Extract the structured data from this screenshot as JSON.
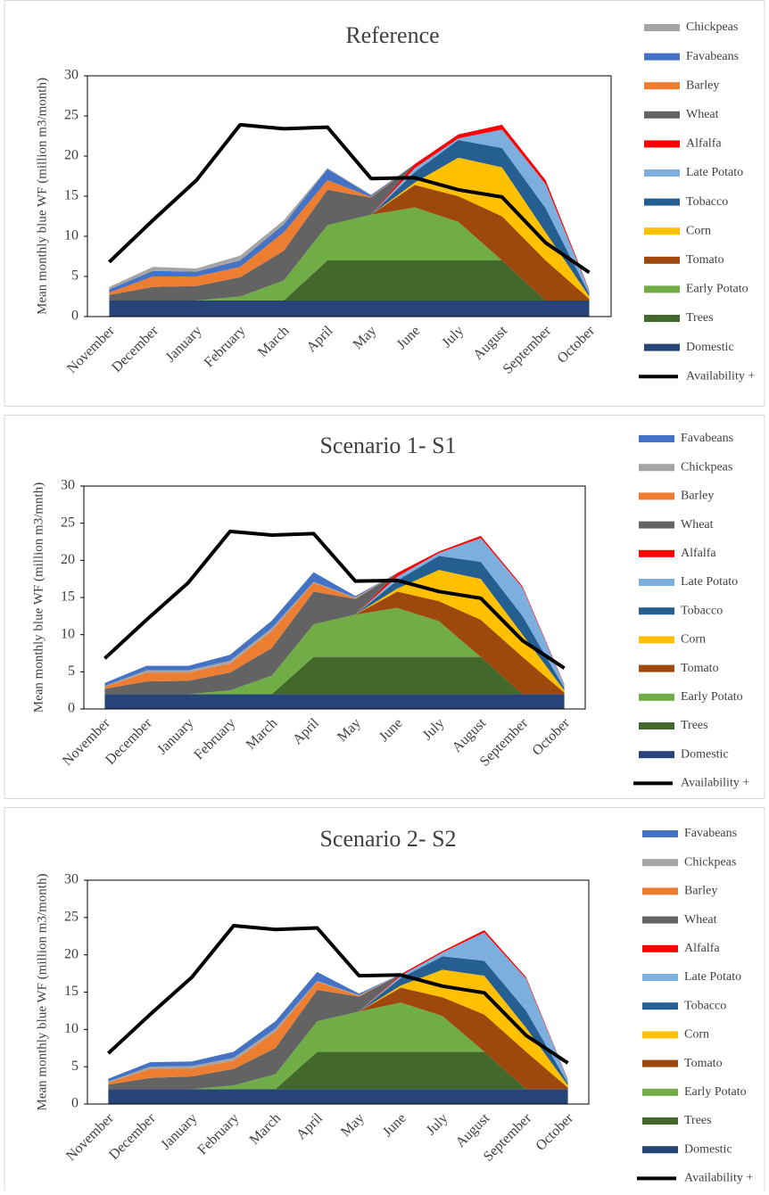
{
  "chart_data": [
    {
      "type": "stacked-area",
      "title": "Reference",
      "ylabel": "Mean monthly blue WF (million m3/month)",
      "categories": [
        "November",
        "December",
        "January",
        "February",
        "March",
        "April",
        "May",
        "June",
        "July",
        "August",
        "September",
        "October"
      ],
      "ylim": [
        0,
        30
      ],
      "yticks": [
        0,
        5,
        10,
        15,
        20,
        25,
        30
      ],
      "series": [
        {
          "name": "Chickpeas",
          "color": "#a5a5a5",
          "values": [
            0.3,
            0.5,
            0.4,
            0.6,
            0.5,
            0.1,
            0.1,
            0,
            0,
            0,
            0,
            0
          ]
        },
        {
          "name": "Favabeans",
          "color": "#4472c4",
          "values": [
            0.4,
            0.7,
            0.6,
            0.8,
            1.0,
            1.4,
            0.2,
            0,
            0,
            0,
            0,
            0
          ]
        },
        {
          "name": "Barley",
          "color": "#ed7d31",
          "values": [
            0.3,
            1.3,
            1.2,
            1.3,
            2.3,
            1.2,
            0.1,
            0,
            0,
            0,
            0,
            0
          ]
        },
        {
          "name": "Wheat",
          "color": "#636363",
          "values": [
            0.7,
            1.7,
            1.8,
            2.4,
            3.7,
            4.4,
            2.1,
            0,
            0,
            0,
            0,
            0
          ]
        },
        {
          "name": "Alfalfa",
          "color": "#ff0000",
          "values": [
            0,
            0,
            0,
            0,
            0,
            0,
            0,
            0.5,
            0.5,
            0.6,
            0.5,
            0.1
          ]
        },
        {
          "name": "Late Potato",
          "color": "#7cafdd",
          "values": [
            0,
            0,
            0,
            0,
            0,
            0,
            0,
            0.5,
            0.2,
            2.3,
            3.0,
            0.4
          ]
        },
        {
          "name": "Tobacco",
          "color": "#255e91",
          "values": [
            0,
            0,
            0,
            0,
            0,
            0,
            0,
            1.3,
            2.2,
            2.4,
            3.0,
            0.3
          ]
        },
        {
          "name": "Corn",
          "color": "#ffc000",
          "values": [
            0,
            0,
            0,
            0,
            0,
            0,
            0,
            0.3,
            4.8,
            6.1,
            3.5,
            0.3
          ]
        },
        {
          "name": "Tomato",
          "color": "#9e480e",
          "values": [
            0,
            0,
            0,
            0,
            0,
            0,
            0,
            2.8,
            3.2,
            5.5,
            5.0,
            0.2
          ]
        },
        {
          "name": "Early Potato",
          "color": "#70ad47",
          "values": [
            0,
            0,
            0,
            0.5,
            2.5,
            4.4,
            5.7,
            6.6,
            4.8,
            0,
            0,
            0
          ]
        },
        {
          "name": "Trees",
          "color": "#43682b",
          "values": [
            0,
            0,
            0,
            0,
            0,
            5,
            5,
            5,
            5,
            5,
            0,
            0
          ]
        },
        {
          "name": "Domestic",
          "color": "#264478",
          "values": [
            2,
            2,
            2,
            2,
            2,
            2,
            2,
            2,
            2,
            2,
            2,
            2
          ]
        },
        {
          "name": "Availability +",
          "color": "#000000",
          "type": "line",
          "values": [
            6.8,
            12,
            17,
            23.9,
            23.4,
            23.6,
            17.2,
            17.3,
            15.8,
            14.9,
            9.2,
            5.5
          ]
        }
      ]
    },
    {
      "type": "stacked-area",
      "title": "Scenario 1- S1",
      "ylabel": "Mean monthly blue WF (million m3/mnth)",
      "categories": [
        "November",
        "December",
        "January",
        "February",
        "March",
        "April",
        "May",
        "June",
        "July",
        "August",
        "September",
        "October"
      ],
      "ylim": [
        0,
        30
      ],
      "yticks": [
        0,
        5,
        10,
        15,
        20,
        25,
        30
      ],
      "series": [
        {
          "name": "Favabeans",
          "color": "#4472c4",
          "values": [
            0.4,
            0.6,
            0.6,
            0.8,
            1.0,
            1.3,
            0.2,
            0,
            0,
            0,
            0,
            0
          ]
        },
        {
          "name": "Chickpeas",
          "color": "#a5a5a5",
          "values": [
            0.1,
            0.3,
            0.3,
            0.4,
            0.4,
            0.1,
            0.1,
            0,
            0,
            0,
            0,
            0
          ]
        },
        {
          "name": "Barley",
          "color": "#ed7d31",
          "values": [
            0.3,
            1.2,
            1.1,
            1.2,
            2.3,
            1.2,
            0.1,
            0,
            0,
            0,
            0,
            0
          ]
        },
        {
          "name": "Wheat",
          "color": "#636363",
          "values": [
            0.7,
            1.7,
            1.8,
            2.4,
            3.7,
            4.4,
            2.1,
            0,
            0,
            0,
            0,
            0
          ]
        },
        {
          "name": "Alfalfa",
          "color": "#ff0000",
          "values": [
            0,
            0,
            0,
            0,
            0,
            0,
            0,
            0.5,
            0.2,
            0.3,
            0.2,
            0.1
          ]
        },
        {
          "name": "Late Potato",
          "color": "#7cafdd",
          "values": [
            0,
            0,
            0,
            0,
            0,
            0,
            0,
            0.5,
            0.4,
            3.2,
            3.8,
            0.4
          ]
        },
        {
          "name": "Tobacco",
          "color": "#255e91",
          "values": [
            0,
            0,
            0,
            0,
            0,
            0,
            0,
            1.1,
            1.9,
            2.3,
            2.5,
            0.3
          ]
        },
        {
          "name": "Corn",
          "color": "#ffc000",
          "values": [
            0,
            0,
            0,
            0,
            0,
            0,
            0,
            0.4,
            4.2,
            5.5,
            3.0,
            0.3
          ]
        },
        {
          "name": "Tomato",
          "color": "#9e480e",
          "values": [
            0,
            0,
            0,
            0,
            0,
            0,
            0,
            2.2,
            2.7,
            5.0,
            5.0,
            0.2
          ]
        },
        {
          "name": "Early Potato",
          "color": "#70ad47",
          "values": [
            0,
            0,
            0,
            0.5,
            2.5,
            4.4,
            5.7,
            6.6,
            4.8,
            0,
            0,
            0
          ]
        },
        {
          "name": "Trees",
          "color": "#43682b",
          "values": [
            0,
            0,
            0,
            0,
            0,
            5,
            5,
            5,
            5,
            5,
            0,
            0
          ]
        },
        {
          "name": "Domestic",
          "color": "#264478",
          "values": [
            2,
            2,
            2,
            2,
            2,
            2,
            2,
            2,
            2,
            2,
            2,
            2
          ]
        },
        {
          "name": "Availability +",
          "color": "#000000",
          "type": "line",
          "values": [
            6.8,
            12,
            17,
            23.9,
            23.4,
            23.6,
            17.2,
            17.3,
            15.8,
            14.9,
            9.2,
            5.5
          ]
        }
      ]
    },
    {
      "type": "stacked-area",
      "title": "Scenario 2- S2",
      "ylabel": "Mean monthly blue WF (million m3/month)",
      "categories": [
        "November",
        "December",
        "January",
        "February",
        "March",
        "April",
        "May",
        "June",
        "July",
        "August",
        "September",
        "October"
      ],
      "ylim": [
        0,
        30
      ],
      "yticks": [
        0,
        5,
        10,
        15,
        20,
        25,
        30
      ],
      "series": [
        {
          "name": "Favabeans",
          "color": "#4472c4",
          "values": [
            0.4,
            0.6,
            0.6,
            0.8,
            1.0,
            1.2,
            0.2,
            0,
            0,
            0,
            0,
            0
          ]
        },
        {
          "name": "Chickpeas",
          "color": "#a5a5a5",
          "values": [
            0.1,
            0.3,
            0.3,
            0.4,
            0.4,
            0.1,
            0.1,
            0,
            0,
            0,
            0,
            0
          ]
        },
        {
          "name": "Barley",
          "color": "#ed7d31",
          "values": [
            0.3,
            1.2,
            1.1,
            1.1,
            2.2,
            1.1,
            0.1,
            0,
            0,
            0,
            0,
            0
          ]
        },
        {
          "name": "Wheat",
          "color": "#636363",
          "values": [
            0.6,
            1.5,
            1.7,
            2.2,
            3.5,
            4.2,
            2.0,
            0,
            0,
            0,
            0,
            0
          ]
        },
        {
          "name": "Alfalfa",
          "color": "#ff0000",
          "values": [
            0,
            0,
            0,
            0,
            0,
            0,
            0,
            0.2,
            0.2,
            0.3,
            0.2,
            0.1
          ]
        },
        {
          "name": "Late Potato",
          "color": "#7cafdd",
          "values": [
            0,
            0,
            0,
            0,
            0,
            0,
            0,
            0.3,
            0.5,
            3.8,
            4.3,
            0.4
          ]
        },
        {
          "name": "Tobacco",
          "color": "#255e91",
          "values": [
            0,
            0,
            0,
            0,
            0,
            0,
            0,
            1.0,
            1.8,
            2.0,
            2.3,
            0.3
          ]
        },
        {
          "name": "Corn",
          "color": "#ffc000",
          "values": [
            0,
            0,
            0,
            0,
            0,
            0,
            0,
            0.3,
            3.7,
            5.2,
            3.2,
            0.3
          ]
        },
        {
          "name": "Tomato",
          "color": "#9e480e",
          "values": [
            0,
            0,
            0,
            0,
            0,
            0,
            0,
            2.0,
            2.5,
            5.0,
            5.0,
            0.2
          ]
        },
        {
          "name": "Early Potato",
          "color": "#70ad47",
          "values": [
            0,
            0,
            0,
            0.5,
            2.0,
            4.1,
            5.4,
            6.6,
            4.8,
            0,
            0,
            0
          ]
        },
        {
          "name": "Trees",
          "color": "#43682b",
          "values": [
            0,
            0,
            0,
            0,
            0,
            5,
            5,
            5,
            5,
            5,
            0,
            0
          ]
        },
        {
          "name": "Domestic",
          "color": "#264478",
          "values": [
            2,
            2,
            2,
            2,
            2,
            2,
            2,
            2,
            2,
            2,
            2,
            2
          ]
        },
        {
          "name": "Availability +",
          "color": "#000000",
          "type": "line",
          "values": [
            6.8,
            12,
            17,
            23.9,
            23.4,
            23.6,
            17.2,
            17.3,
            15.8,
            14.9,
            9.2,
            5.5
          ]
        }
      ]
    }
  ]
}
